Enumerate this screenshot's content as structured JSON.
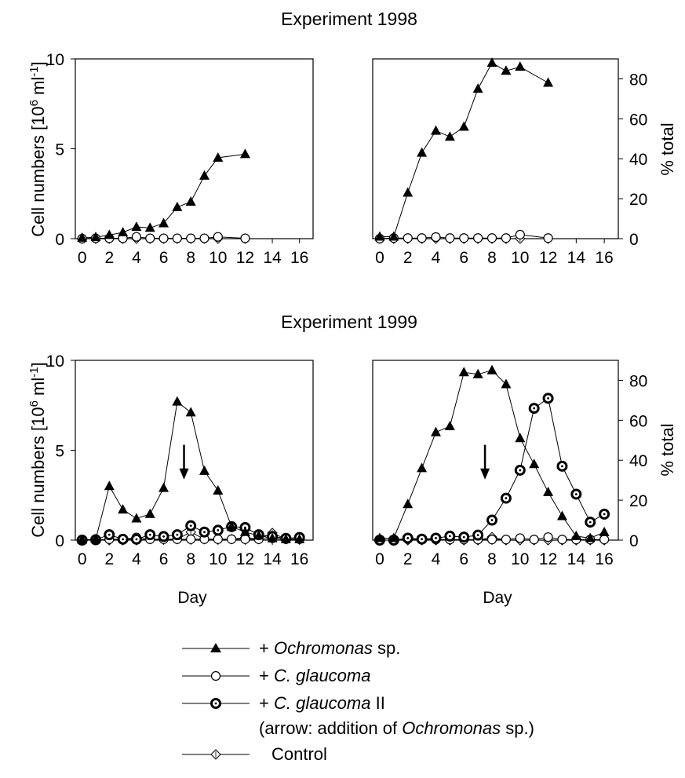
{
  "chart_data": [
    {
      "type": "line",
      "group_title": "Experiment 1998",
      "ylabel": "Cell numbers [10^6 ml^-1]",
      "xlabel": "",
      "xticks": [
        0,
        2,
        4,
        6,
        8,
        10,
        12,
        14,
        16
      ],
      "yticks": [
        0,
        5,
        10
      ],
      "xlim": [
        -0.5,
        17
      ],
      "ylim": [
        0,
        10
      ],
      "series": [
        {
          "name": "+ Ochromonas sp.",
          "marker": "triangle",
          "x": [
            0,
            1,
            2,
            3,
            4,
            5,
            6,
            7,
            8,
            9,
            10,
            12
          ],
          "y": [
            0.05,
            0.08,
            0.2,
            0.35,
            0.65,
            0.6,
            0.85,
            1.75,
            2.05,
            3.5,
            4.5,
            4.7
          ]
        },
        {
          "name": "+ C. glaucoma",
          "marker": "open-circle",
          "x": [
            0,
            1,
            2,
            3,
            4,
            5,
            6,
            7,
            8,
            9,
            10,
            12
          ],
          "y": [
            0,
            0.02,
            0.02,
            0.02,
            0.1,
            0.02,
            0.02,
            0.02,
            0.02,
            0.02,
            0.1,
            0.02
          ]
        },
        {
          "name": "Control",
          "marker": "diamond",
          "x": [
            0,
            1,
            2,
            3,
            4,
            5,
            6,
            7,
            8,
            9,
            10,
            12
          ],
          "y": [
            0,
            0,
            0,
            0,
            0,
            0,
            0,
            0,
            0,
            0,
            0,
            0
          ]
        }
      ]
    },
    {
      "type": "line",
      "group_title": "Experiment 1998",
      "ylabel": "% total",
      "xlabel": "",
      "xticks": [
        0,
        2,
        4,
        6,
        8,
        10,
        12,
        14,
        16
      ],
      "yticks": [
        0,
        20,
        40,
        60,
        80
      ],
      "xlim": [
        -0.5,
        17
      ],
      "ylim": [
        0,
        90
      ],
      "series": [
        {
          "name": "+ Ochromonas sp.",
          "marker": "triangle",
          "x": [
            0,
            1,
            2,
            3,
            4,
            5,
            6,
            7,
            8,
            9,
            10,
            12
          ],
          "y": [
            1,
            1,
            23,
            43,
            54,
            51,
            56,
            75,
            88,
            84,
            86,
            78
          ]
        },
        {
          "name": "+ C. glaucoma",
          "marker": "open-circle",
          "x": [
            0,
            1,
            2,
            3,
            4,
            5,
            6,
            7,
            8,
            9,
            10,
            12
          ],
          "y": [
            0,
            0.3,
            0.3,
            0.3,
            0.8,
            0.3,
            0.3,
            0.3,
            0.3,
            0.3,
            2,
            0.3
          ]
        },
        {
          "name": "Control",
          "marker": "diamond",
          "x": [
            0,
            1,
            2,
            3,
            4,
            5,
            6,
            7,
            8,
            9,
            10,
            12
          ],
          "y": [
            0,
            0,
            0,
            0,
            0,
            0,
            0,
            0,
            0,
            0,
            0,
            0
          ]
        }
      ]
    },
    {
      "type": "line",
      "group_title": "Experiment 1999",
      "ylabel": "Cell numbers [10^6 ml^-1]",
      "xlabel": "Day",
      "xticks": [
        0,
        2,
        4,
        6,
        8,
        10,
        12,
        14,
        16
      ],
      "yticks": [
        0,
        5,
        10
      ],
      "xlim": [
        -0.5,
        17
      ],
      "ylim": [
        0,
        10
      ],
      "arrow_day": 7.5,
      "series": [
        {
          "name": "+ Ochromonas sp.",
          "marker": "triangle",
          "x": [
            0,
            1,
            2,
            3,
            4,
            5,
            6,
            7,
            8,
            9,
            10,
            11,
            12,
            13,
            14,
            15,
            16
          ],
          "y": [
            0.02,
            0.05,
            3.0,
            1.7,
            1.2,
            1.45,
            2.9,
            7.7,
            7.1,
            3.85,
            2.75,
            0.75,
            0.45,
            0.25,
            0.1,
            0.05,
            0.05
          ]
        },
        {
          "name": "+ C. glaucoma",
          "marker": "open-circle",
          "x": [
            0,
            1,
            2,
            3,
            4,
            5,
            6,
            7,
            8,
            9,
            10,
            11,
            12,
            13,
            14,
            15,
            16
          ],
          "y": [
            0,
            0,
            0.05,
            0.05,
            0.15,
            0.05,
            0.05,
            0.05,
            0.05,
            0.05,
            0.05,
            0.05,
            0.05,
            0.05,
            0.1,
            0.05,
            0.05
          ]
        },
        {
          "name": "+ C. glaucoma II",
          "marker": "dot-circle",
          "x": [
            0,
            1,
            2,
            3,
            4,
            5,
            6,
            7,
            8,
            9,
            10,
            11,
            12,
            13,
            14,
            15,
            16
          ],
          "y": [
            0,
            0.02,
            0.3,
            0.05,
            0.05,
            0.3,
            0.2,
            0.3,
            0.8,
            0.45,
            0.55,
            0.75,
            0.7,
            0.3,
            0.2,
            0.1,
            0.15
          ]
        },
        {
          "name": "Control",
          "marker": "diamond",
          "x": [
            0,
            1,
            2,
            3,
            4,
            5,
            6,
            7,
            8,
            9,
            10,
            11,
            12,
            13,
            14,
            15,
            16
          ],
          "y": [
            0,
            0,
            0,
            0,
            0,
            0.05,
            0.05,
            0.05,
            0.45,
            0.05,
            0.05,
            0.05,
            0.15,
            0.05,
            0.4,
            0.05,
            0.05
          ]
        }
      ]
    },
    {
      "type": "line",
      "group_title": "Experiment 1999",
      "ylabel": "% total",
      "xlabel": "Day",
      "xticks": [
        0,
        2,
        4,
        6,
        8,
        10,
        12,
        14,
        16
      ],
      "yticks": [
        0,
        20,
        40,
        60,
        80
      ],
      "xlim": [
        -0.5,
        17
      ],
      "ylim": [
        0,
        90
      ],
      "arrow_day": 7.5,
      "series": [
        {
          "name": "+ Ochromonas sp.",
          "marker": "triangle",
          "x": [
            0,
            1,
            2,
            3,
            4,
            5,
            6,
            7,
            8,
            9,
            10,
            11,
            12,
            13,
            14,
            15,
            16
          ],
          "y": [
            1,
            1,
            18,
            36,
            54,
            57,
            84,
            83,
            85,
            78,
            51,
            38,
            24,
            12,
            2,
            1,
            4
          ]
        },
        {
          "name": "+ C. glaucoma",
          "marker": "open-circle",
          "x": [
            0,
            1,
            2,
            3,
            4,
            5,
            6,
            7,
            8,
            9,
            10,
            11,
            12,
            13,
            14,
            15,
            16
          ],
          "y": [
            0,
            0,
            0.5,
            0.3,
            0.3,
            0.3,
            0.3,
            0.3,
            0.3,
            0.3,
            1,
            0.3,
            1.5,
            0.3,
            0.3,
            0.3,
            0.3
          ]
        },
        {
          "name": "+ C. glaucoma II",
          "marker": "dot-circle",
          "x": [
            0,
            1,
            2,
            3,
            4,
            5,
            6,
            7,
            8,
            9,
            10,
            11,
            12,
            13,
            14,
            15,
            16
          ],
          "y": [
            0,
            0,
            1,
            0.5,
            1,
            2,
            1.5,
            2.5,
            10,
            21,
            35,
            66,
            71,
            37,
            23,
            9,
            13
          ]
        },
        {
          "name": "Control",
          "marker": "diamond",
          "x": [
            0,
            1,
            2,
            3,
            4,
            5,
            6,
            7,
            8,
            9,
            10,
            11,
            12,
            13,
            14,
            15,
            16
          ],
          "y": [
            0,
            0,
            0,
            0,
            0,
            0,
            0,
            0,
            1.5,
            0,
            0,
            0,
            0,
            0,
            0,
            0,
            0
          ]
        }
      ]
    }
  ],
  "group_titles": [
    "Experiment 1998",
    "Experiment 1999"
  ],
  "axis_text": {
    "cell_numbers_prefix": "Cell numbers [10",
    "cell_numbers_sup1": "6",
    "cell_numbers_mid": " ml",
    "cell_numbers_sup2": "-1",
    "cell_numbers_suffix": "]",
    "pct_total": "% total",
    "day": "Day"
  },
  "legend": {
    "ochromonas": {
      "prefix": "+ ",
      "italic": "Ochromonas",
      "suffix": " sp."
    },
    "glaucoma": {
      "prefix": "+ ",
      "italic": "C. glaucoma",
      "suffix": ""
    },
    "glaucoma2": {
      "prefix": "+ ",
      "italic": "C. glaucoma",
      "suffix": " II"
    },
    "arrow_note": {
      "prefix": "(arrow: addition of ",
      "italic": "Ochromonas",
      "suffix": " sp.)"
    },
    "control": {
      "text": "Control"
    }
  }
}
